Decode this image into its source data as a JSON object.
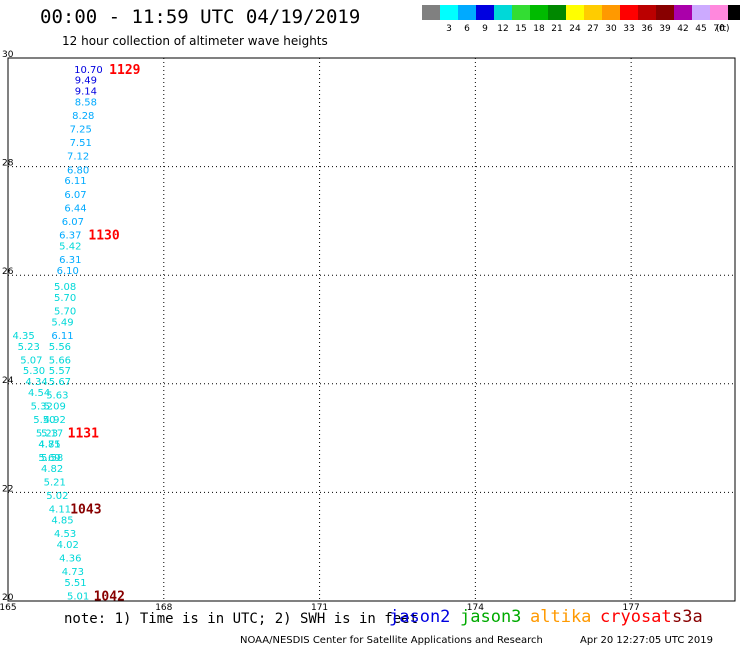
{
  "header": {
    "title": "00:00 - 11:59 UTC 04/19/2019",
    "subtitle": "12 hour collection of altimeter wave heights"
  },
  "color_scale": {
    "unit": "(ft)",
    "colors": [
      "#808080",
      "#00ffff",
      "#00aaff",
      "#0000e0",
      "#00d8d8",
      "#33dd33",
      "#00bb00",
      "#008800",
      "#ffff00",
      "#ffcc00",
      "#ff9900",
      "#ff0000",
      "#bb0000",
      "#880000",
      "#aa00aa",
      "#ccaaff",
      "#ff88dd",
      "#000000"
    ],
    "labels": [
      "3",
      "6",
      "9",
      "12",
      "15",
      "18",
      "21",
      "24",
      "27",
      "30",
      "33",
      "36",
      "39",
      "42",
      "45",
      "70"
    ]
  },
  "chart_data": {
    "type": "scatter",
    "title": "00:00 - 11:59 UTC 04/19/2019",
    "subtitle": "12 hour collection of altimeter wave heights",
    "xlim": [
      165,
      179
    ],
    "ylim": [
      20,
      30
    ],
    "x_ticks": [
      "165",
      "168",
      "171",
      "174",
      "177"
    ],
    "y_ticks": [
      "20",
      "22",
      "24",
      "26",
      "28",
      "30"
    ],
    "grid": true,
    "observations": [
      {
        "lat": 29.8,
        "lon": 166.55,
        "swh": "10.70",
        "color": "#0000e0"
      },
      {
        "lat": 29.6,
        "lon": 166.5,
        "swh": "9.49",
        "color": "#0000e0"
      },
      {
        "lat": 29.4,
        "lon": 166.5,
        "swh": "9.14",
        "color": "#0000e0"
      },
      {
        "lat": 29.2,
        "lon": 166.5,
        "swh": "8.58",
        "color": "#00aaff"
      },
      {
        "lat": 28.95,
        "lon": 166.45,
        "swh": "8.28",
        "color": "#00aaff"
      },
      {
        "lat": 28.7,
        "lon": 166.4,
        "swh": "7.25",
        "color": "#00aaff"
      },
      {
        "lat": 28.45,
        "lon": 166.4,
        "swh": "7.51",
        "color": "#00aaff"
      },
      {
        "lat": 28.2,
        "lon": 166.35,
        "swh": "7.12",
        "color": "#00aaff"
      },
      {
        "lat": 27.95,
        "lon": 166.35,
        "swh": "6.80",
        "color": "#00aaff"
      },
      {
        "lat": 27.75,
        "lon": 166.3,
        "swh": "6.11",
        "color": "#00aaff"
      },
      {
        "lat": 27.5,
        "lon": 166.3,
        "swh": "6.07",
        "color": "#00aaff"
      },
      {
        "lat": 27.25,
        "lon": 166.3,
        "swh": "6.44",
        "color": "#00aaff"
      },
      {
        "lat": 27.0,
        "lon": 166.25,
        "swh": "6.07",
        "color": "#00aaff"
      },
      {
        "lat": 26.75,
        "lon": 166.2,
        "swh": "6.37",
        "color": "#00aaff"
      },
      {
        "lat": 26.55,
        "lon": 166.2,
        "swh": "5.42",
        "color": "#00d8d8"
      },
      {
        "lat": 26.3,
        "lon": 166.2,
        "swh": "6.31",
        "color": "#00aaff"
      },
      {
        "lat": 26.1,
        "lon": 166.15,
        "swh": "6.10",
        "color": "#00aaff"
      },
      {
        "lat": 25.8,
        "lon": 166.1,
        "swh": "5.08",
        "color": "#00d8d8"
      },
      {
        "lat": 25.6,
        "lon": 166.1,
        "swh": "5.70",
        "color": "#00d8d8"
      },
      {
        "lat": 25.35,
        "lon": 166.1,
        "swh": "5.70",
        "color": "#00d8d8"
      },
      {
        "lat": 25.15,
        "lon": 166.05,
        "swh": "5.49",
        "color": "#00d8d8"
      },
      {
        "lat": 24.9,
        "lon": 166.05,
        "swh": "6.11",
        "color": "#00aaff"
      },
      {
        "lat": 24.7,
        "lon": 166.0,
        "swh": "5.56",
        "color": "#00d8d8"
      },
      {
        "lat": 24.45,
        "lon": 166.0,
        "swh": "5.66",
        "color": "#00d8d8"
      },
      {
        "lat": 24.25,
        "lon": 166.0,
        "swh": "5.57",
        "color": "#00d8d8"
      },
      {
        "lat": 24.05,
        "lon": 166.0,
        "swh": "5.67",
        "color": "#00d8d8"
      },
      {
        "lat": 23.8,
        "lon": 165.95,
        "swh": "5.63",
        "color": "#00d8d8"
      },
      {
        "lat": 23.6,
        "lon": 165.9,
        "swh": "5.09",
        "color": "#00d8d8"
      },
      {
        "lat": 23.35,
        "lon": 165.9,
        "swh": "4.92",
        "color": "#00d8d8"
      },
      {
        "lat": 23.1,
        "lon": 165.85,
        "swh": "5.17",
        "color": "#00d8d8"
      },
      {
        "lat": 22.9,
        "lon": 165.8,
        "swh": "4.81",
        "color": "#00d8d8"
      },
      {
        "lat": 22.65,
        "lon": 165.8,
        "swh": "5.69",
        "color": "#00d8d8"
      },
      {
        "lat": 24.9,
        "lon": 165.3,
        "swh": "4.35",
        "color": "#00d8d8"
      },
      {
        "lat": 24.7,
        "lon": 165.4,
        "swh": "5.23",
        "color": "#00d8d8"
      },
      {
        "lat": 24.45,
        "lon": 165.45,
        "swh": "5.07",
        "color": "#00d8d8"
      },
      {
        "lat": 24.25,
        "lon": 165.5,
        "swh": "5.30",
        "color": "#00d8d8"
      },
      {
        "lat": 24.05,
        "lon": 165.55,
        "swh": "4.34",
        "color": "#00d8d8"
      },
      {
        "lat": 23.85,
        "lon": 165.6,
        "swh": "4.54",
        "color": "#00d8d8"
      },
      {
        "lat": 23.6,
        "lon": 165.65,
        "swh": "5.32",
        "color": "#00d8d8"
      },
      {
        "lat": 23.35,
        "lon": 165.7,
        "swh": "5.50",
        "color": "#00d8d8"
      },
      {
        "lat": 23.1,
        "lon": 165.75,
        "swh": "5.23",
        "color": "#00d8d8"
      },
      {
        "lat": 22.9,
        "lon": 165.8,
        "swh": "4.75",
        "color": "#00d8d8"
      },
      {
        "lat": 22.65,
        "lon": 165.85,
        "swh": "5.58",
        "color": "#00d8d8"
      },
      {
        "lat": 22.45,
        "lon": 165.85,
        "swh": "4.82",
        "color": "#00d8d8"
      },
      {
        "lat": 22.2,
        "lon": 165.9,
        "swh": "5.21",
        "color": "#00d8d8"
      },
      {
        "lat": 21.95,
        "lon": 165.95,
        "swh": "5.02",
        "color": "#00d8d8"
      },
      {
        "lat": 21.7,
        "lon": 166.0,
        "swh": "4.11",
        "color": "#00d8d8"
      },
      {
        "lat": 21.5,
        "lon": 166.05,
        "swh": "4.85",
        "color": "#00d8d8"
      },
      {
        "lat": 21.25,
        "lon": 166.1,
        "swh": "4.53",
        "color": "#00d8d8"
      },
      {
        "lat": 21.05,
        "lon": 166.15,
        "swh": "4.02",
        "color": "#00d8d8"
      },
      {
        "lat": 20.8,
        "lon": 166.2,
        "swh": "4.36",
        "color": "#00d8d8"
      },
      {
        "lat": 20.55,
        "lon": 166.25,
        "swh": "4.73",
        "color": "#00d8d8"
      },
      {
        "lat": 20.35,
        "lon": 166.3,
        "swh": "5.51",
        "color": "#00d8d8"
      },
      {
        "lat": 20.1,
        "lon": 166.35,
        "swh": "5.01",
        "color": "#00d8d8"
      }
    ],
    "pass_times": [
      {
        "lat": 29.8,
        "lon": 167.25,
        "label": "1129",
        "color": "#ff0000"
      },
      {
        "lat": 26.75,
        "lon": 166.85,
        "label": "1130",
        "color": "#ff0000"
      },
      {
        "lat": 23.1,
        "lon": 166.45,
        "label": "1131",
        "color": "#ff0000"
      },
      {
        "lat": 21.7,
        "lon": 166.5,
        "label": "1043",
        "color": "#880000"
      },
      {
        "lat": 20.1,
        "lon": 166.95,
        "label": "1042",
        "color": "#880000"
      }
    ]
  },
  "footer": {
    "note": "note: 1) Time is in UTC; 2) SWH is in feet",
    "satellites": [
      {
        "name": "jason2",
        "color": "#0000e0"
      },
      {
        "name": "jason3",
        "color": "#00aa00"
      },
      {
        "name": "altika",
        "color": "#ff9900"
      },
      {
        "name": "cryosat",
        "color": "#ff0000"
      },
      {
        "name": "s3a",
        "color": "#880000"
      }
    ],
    "credit": "NOAA/NESDIS Center for Satellite Applications and Research",
    "generated": "Apr 20 12:27:05 UTC 2019"
  }
}
